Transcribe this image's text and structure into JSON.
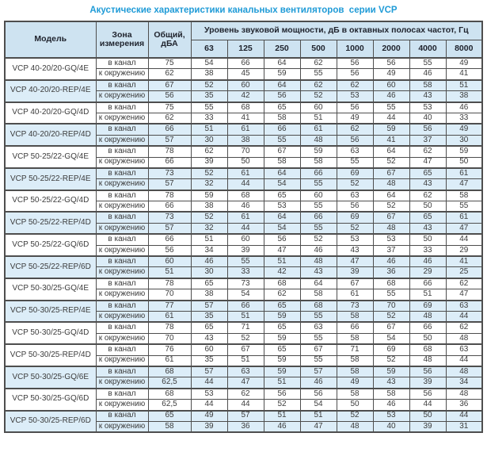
{
  "title": "Акустические характеристики канальных вентиляторов  серии VCP",
  "colors": {
    "title_color": "#1f9bd7",
    "header_bg": "#cee3f1",
    "shaded_row_bg": "#dcedf8",
    "border_color": "#4e4e4e",
    "text_color": "#3c3c3c"
  },
  "table": {
    "headers": {
      "model": "Модель",
      "zone": "Зона измерения",
      "total": "Общий, дБА",
      "spl": "Уровень звуковой мощности, дБ в октавных полосах частот, Гц"
    },
    "frequencies": [
      "63",
      "125",
      "250",
      "500",
      "1000",
      "2000",
      "4000",
      "8000"
    ],
    "zone_in_label": "в канал",
    "zone_out_label": "к окружению",
    "rows": [
      {
        "model": "VCP 40-20/20-GQ/4E",
        "shaded": false,
        "in_duct": {
          "total": "75",
          "bands": [
            54,
            66,
            64,
            62,
            56,
            56,
            55,
            49
          ]
        },
        "to_env": {
          "total": "62",
          "bands": [
            38,
            45,
            59,
            55,
            56,
            49,
            46,
            41
          ]
        }
      },
      {
        "model": "VCP 40-20/20-REP/4E",
        "shaded": true,
        "in_duct": {
          "total": "67",
          "bands": [
            52,
            60,
            64,
            62,
            62,
            60,
            58,
            51
          ]
        },
        "to_env": {
          "total": "56",
          "bands": [
            35,
            42,
            56,
            52,
            53,
            46,
            43,
            38
          ]
        }
      },
      {
        "model": "VCP 40-20/20-GQ/4D",
        "shaded": false,
        "in_duct": {
          "total": "75",
          "bands": [
            55,
            68,
            65,
            60,
            56,
            55,
            53,
            46
          ]
        },
        "to_env": {
          "total": "62",
          "bands": [
            33,
            41,
            58,
            51,
            49,
            44,
            40,
            33
          ]
        }
      },
      {
        "model": "VCP 40-20/20-REP/4D",
        "shaded": true,
        "in_duct": {
          "total": "66",
          "bands": [
            51,
            61,
            66,
            61,
            62,
            59,
            56,
            49
          ]
        },
        "to_env": {
          "total": "57",
          "bands": [
            30,
            38,
            55,
            48,
            56,
            41,
            37,
            30
          ]
        }
      },
      {
        "model": "VCP 50-25/22-GQ/4E",
        "shaded": false,
        "in_duct": {
          "total": "78",
          "bands": [
            62,
            70,
            67,
            59,
            63,
            64,
            62,
            59
          ]
        },
        "to_env": {
          "total": "66",
          "bands": [
            39,
            50,
            58,
            58,
            55,
            52,
            47,
            50
          ]
        }
      },
      {
        "model": "VCP 50-25/22-REP/4E",
        "shaded": true,
        "in_duct": {
          "total": "73",
          "bands": [
            52,
            61,
            64,
            66,
            69,
            67,
            65,
            61
          ]
        },
        "to_env": {
          "total": "57",
          "bands": [
            32,
            44,
            54,
            55,
            52,
            48,
            43,
            47
          ]
        }
      },
      {
        "model": "VCP 50-25/22-GQ/4D",
        "shaded": false,
        "in_duct": {
          "total": "78",
          "bands": [
            59,
            68,
            65,
            60,
            63,
            64,
            62,
            58
          ]
        },
        "to_env": {
          "total": "66",
          "bands": [
            38,
            46,
            53,
            55,
            56,
            52,
            50,
            55
          ]
        }
      },
      {
        "model": "VCP 50-25/22-REP/4D",
        "shaded": true,
        "in_duct": {
          "total": "73",
          "bands": [
            52,
            61,
            64,
            66,
            69,
            67,
            65,
            61
          ]
        },
        "to_env": {
          "total": "57",
          "bands": [
            32,
            44,
            54,
            55,
            52,
            48,
            43,
            47
          ]
        }
      },
      {
        "model": "VCP 50-25/22-GQ/6D",
        "shaded": false,
        "in_duct": {
          "total": "66",
          "bands": [
            51,
            60,
            56,
            52,
            53,
            53,
            50,
            44
          ]
        },
        "to_env": {
          "total": "56",
          "bands": [
            34,
            39,
            47,
            46,
            43,
            37,
            33,
            29
          ]
        }
      },
      {
        "model": "VCP 50-25/22-REP/6D",
        "shaded": true,
        "in_duct": {
          "total": "60",
          "bands": [
            46,
            55,
            51,
            48,
            47,
            46,
            46,
            41
          ]
        },
        "to_env": {
          "total": "51",
          "bands": [
            30,
            33,
            42,
            43,
            39,
            36,
            29,
            25
          ]
        }
      },
      {
        "model": "VCP 50-30/25-GQ/4E",
        "shaded": false,
        "in_duct": {
          "total": "78",
          "bands": [
            65,
            73,
            68,
            64,
            67,
            68,
            66,
            62
          ]
        },
        "to_env": {
          "total": "70",
          "bands": [
            38,
            54,
            62,
            58,
            61,
            55,
            51,
            47
          ]
        }
      },
      {
        "model": "VCP 50-30/25-REP/4E",
        "shaded": true,
        "in_duct": {
          "total": "77",
          "bands": [
            57,
            66,
            65,
            68,
            73,
            70,
            69,
            63
          ]
        },
        "to_env": {
          "total": "61",
          "bands": [
            35,
            51,
            59,
            55,
            58,
            52,
            48,
            44
          ]
        }
      },
      {
        "model": "VCP 50-30/25-GQ/4D",
        "shaded": false,
        "in_duct": {
          "total": "78",
          "bands": [
            65,
            71,
            65,
            63,
            66,
            67,
            66,
            62
          ]
        },
        "to_env": {
          "total": "70",
          "bands": [
            43,
            52,
            59,
            55,
            58,
            54,
            50,
            48
          ]
        }
      },
      {
        "model": "VCP 50-30/25-REP/4D",
        "shaded": false,
        "in_duct": {
          "total": "76",
          "bands": [
            60,
            67,
            65,
            67,
            71,
            69,
            68,
            63
          ]
        },
        "to_env": {
          "total": "61",
          "bands": [
            35,
            51,
            59,
            55,
            58,
            52,
            48,
            44
          ]
        }
      },
      {
        "model": "VCP 50-30/25-GQ/6E",
        "shaded": true,
        "in_duct": {
          "total": "68",
          "bands": [
            57,
            63,
            59,
            57,
            58,
            59,
            56,
            48
          ]
        },
        "to_env": {
          "total": "62,5",
          "bands": [
            44,
            47,
            51,
            46,
            49,
            43,
            39,
            34
          ]
        }
      },
      {
        "model": "VCP 50-30/25-GQ/6D",
        "shaded": false,
        "in_duct": {
          "total": "68",
          "bands": [
            53,
            62,
            56,
            56,
            58,
            58,
            56,
            48
          ]
        },
        "to_env": {
          "total": "62,5",
          "bands": [
            44,
            44,
            52,
            54,
            50,
            46,
            44,
            36
          ]
        }
      },
      {
        "model": "VCP 50-30/25-REP/6D",
        "shaded": true,
        "in_duct": {
          "total": "65",
          "bands": [
            49,
            57,
            51,
            51,
            52,
            53,
            50,
            44
          ]
        },
        "to_env": {
          "total": "58",
          "bands": [
            39,
            36,
            46,
            47,
            48,
            40,
            39,
            31
          ]
        }
      }
    ]
  }
}
